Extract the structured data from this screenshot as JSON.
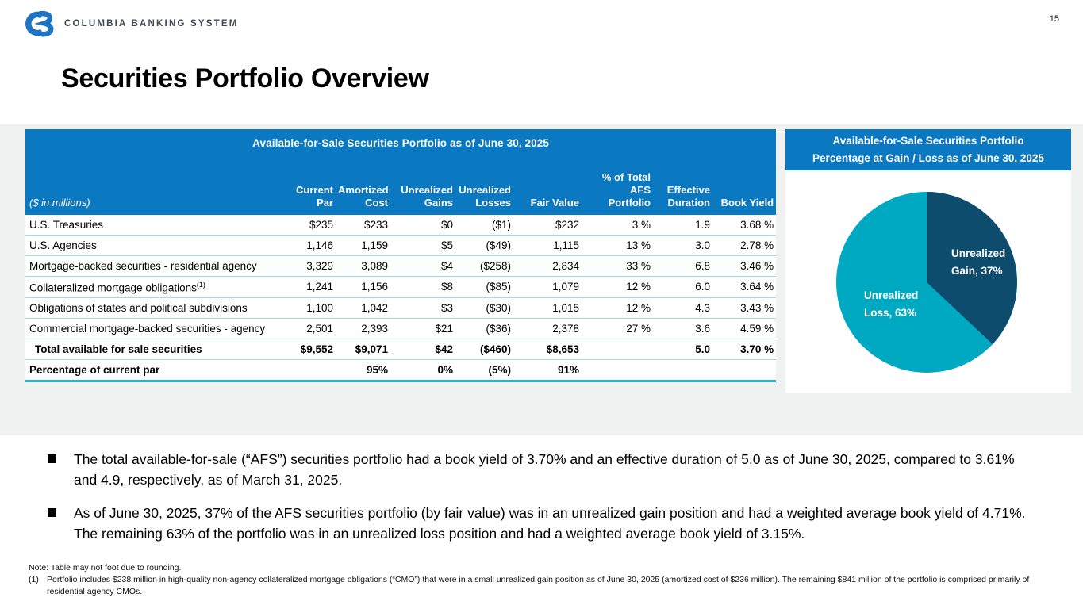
{
  "page": {
    "number": "15",
    "logo_text": "COLUMBIA BANKING SYSTEM",
    "title": "Securities Portfolio Overview"
  },
  "table": {
    "title": "Available-for-Sale Securities Portfolio as of June 30, 2025",
    "unit_label": "($ in millions)",
    "columns": [
      "Current\nPar",
      "Amortized\nCost",
      "Unrealized\nGains",
      "Unrealized\nLosses",
      "Fair Value",
      "% of Total\nAFS\nPortfolio",
      "Effective\nDuration",
      "Book Yield"
    ],
    "rows": [
      {
        "label": "U.S. Treasuries",
        "cells": [
          "$235",
          "$233",
          "$0",
          "($1)",
          "$232",
          "3 %",
          "1.9",
          "3.68 %"
        ]
      },
      {
        "label": "U.S. Agencies",
        "cells": [
          "1,146",
          "1,159",
          "$5",
          "($49)",
          "1,115",
          "13 %",
          "3.0",
          "2.78 %"
        ]
      },
      {
        "label": "Mortgage-backed securities - residential agency",
        "cells": [
          "3,329",
          "3,089",
          "$4",
          "($258)",
          "2,834",
          "33 %",
          "6.8",
          "3.46 %"
        ]
      },
      {
        "label": "Collateralized mortgage obligations",
        "sup": "(1)",
        "cells": [
          "1,241",
          "1,156",
          "$8",
          "($85)",
          "1,079",
          "12 %",
          "6.0",
          "3.64 %"
        ]
      },
      {
        "label": "Obligations of states and political subdivisions",
        "cells": [
          "1,100",
          "1,042",
          "$3",
          "($30)",
          "1,015",
          "12 %",
          "4.3",
          "3.43 %"
        ]
      },
      {
        "label": "Commercial mortgage-backed securities - agency",
        "cells": [
          "2,501",
          "2,393",
          "$21",
          "($36)",
          "2,378",
          "27 %",
          "3.6",
          "4.59 %"
        ]
      },
      {
        "label": "Total available for sale securities",
        "bold": true,
        "indent": true,
        "cells": [
          "$9,552",
          "$9,071",
          "$42",
          "($460)",
          "$8,653",
          "",
          "5.0",
          "3.70 %"
        ]
      },
      {
        "label": "Percentage of current par",
        "bold": true,
        "cells": [
          "",
          "95%",
          "0%",
          "(5%)",
          "91%",
          "",
          "",
          ""
        ]
      }
    ]
  },
  "chart_data": {
    "type": "pie",
    "title": "Available-for-Sale Securities Portfolio",
    "subtitle": "Percentage at Gain / Loss as of June 30, 2025",
    "start_angle_deg": 0,
    "direction": "clockwise",
    "slices": [
      {
        "label": "Unrealized Gain",
        "value": 37,
        "color": "#0e4c6d",
        "display": "Unrealized\nGain, 37%"
      },
      {
        "label": "Unrealized Loss",
        "value": 63,
        "color": "#00a9c2",
        "display": "Unrealized\nLoss, 63%"
      }
    ]
  },
  "bullets": [
    "The total available-for-sale (“AFS”) securities portfolio had a book yield of 3.70% and an effective duration of 5.0 as of June 30, 2025, compared to 3.61% and 4.9, respectively, as of March 31, 2025.",
    "As of June 30, 2025, 37% of the AFS securities portfolio (by fair value) was in an unrealized gain position and had a weighted average book yield of 4.71%. The remaining 63% of the portfolio was in an unrealized loss position and had a weighted average book yield of 3.15%."
  ],
  "footnotes": {
    "note": "Note: Table may not foot due to rounding.",
    "items": [
      {
        "marker": "(1)",
        "text": "Portfolio includes $238 million in high-quality non-agency collateralized mortgage obligations (“CMO”) that were in a small unrealized gain position as of June 30, 2025 (amortized cost of $236 million). The remaining $841 million of the portfolio is comprised primarily of residential agency CMOs."
      }
    ]
  },
  "colors": {
    "header_blue": "#0b79c2",
    "row_line": "#9edde8",
    "table_bottom_border": "#29b2c6",
    "pie_gain": "#0e4c6d",
    "pie_loss": "#00a9c2",
    "logo_blue": "#1b74c4",
    "logo_text": "#3d4752"
  }
}
